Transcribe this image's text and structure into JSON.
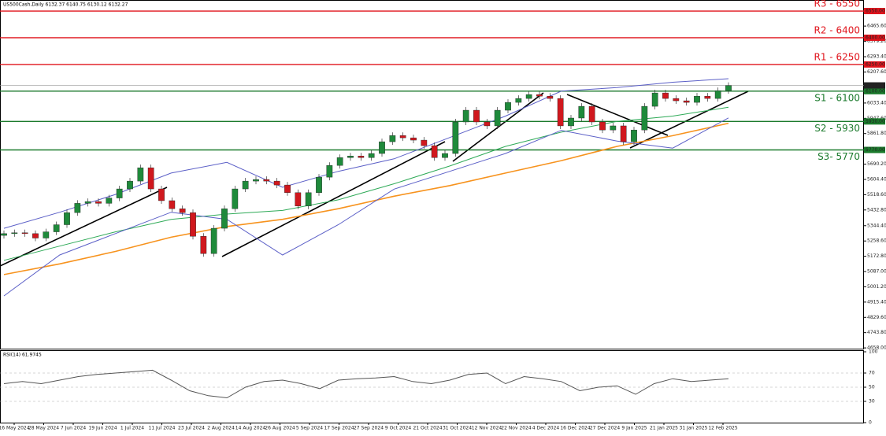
{
  "chart_data": {
    "type": "candlestick",
    "title": "US500Cash,Daily  6132.37 6140.75 6130.12 6132.27",
    "first_open": 5290,
    "closes": [
      5300,
      5305,
      5300,
      5275,
      5310,
      5350,
      5418,
      5470,
      5480,
      5470,
      5500,
      5551,
      5595,
      5670,
      5551,
      5485,
      5440,
      5418,
      5285,
      5188,
      5330,
      5440,
      5551,
      5595,
      5604,
      5595,
      5573,
      5530,
      5455,
      5530,
      5617,
      5683,
      5727,
      5736,
      5727,
      5750,
      5816,
      5851,
      5838,
      5825,
      5794,
      5727,
      5750,
      5927,
      5993,
      5927,
      5905,
      5993,
      6037,
      6059,
      6081,
      6072,
      6059,
      5905,
      5949,
      6015,
      5927,
      5882,
      5905,
      5816,
      5882,
      6015,
      6090,
      6059,
      6046,
      6037,
      6072,
      6059,
      6103,
      6132
    ],
    "up_color": "#1f8a3b",
    "down_color": "#d0181e",
    "overlays": [
      {
        "name": "MA100",
        "color": "#f7931e",
        "values": [
          5070,
          5130,
          5200,
          5280,
          5340,
          5380,
          5440,
          5510,
          5570,
          5640,
          5710,
          5790,
          5850,
          5920
        ]
      },
      {
        "name": "MA50",
        "color": "#2eaa57",
        "values": [
          5150,
          5230,
          5310,
          5380,
          5410,
          5430,
          5490,
          5580,
          5680,
          5790,
          5870,
          5930,
          5960,
          6010
        ]
      },
      {
        "name": "BB upper",
        "color": "#5b5fc7",
        "values": [
          5330,
          5420,
          5520,
          5640,
          5700,
          5560,
          5650,
          5720,
          5840,
          5960,
          6100,
          6120,
          6150,
          6170
        ]
      },
      {
        "name": "BB lower",
        "color": "#5b5fc7",
        "values": [
          4950,
          5180,
          5300,
          5420,
          5380,
          5180,
          5350,
          5550,
          5650,
          5750,
          5880,
          5820,
          5780,
          5950
        ]
      }
    ],
    "levels": [
      {
        "name": "R3 - 6550",
        "value": 6550,
        "label": "6550.00",
        "color": "#e0141c"
      },
      {
        "name": "R2 - 6400",
        "value": 6400,
        "label": "6400.00",
        "color": "#e0141c"
      },
      {
        "name": "R1 - 6250",
        "value": 6250,
        "label": "6250.00",
        "color": "#e0141c"
      },
      {
        "name": "S1 - 6100",
        "value": 6100,
        "label": "6100.00",
        "color": "#1b7a2c"
      },
      {
        "name": "S2 - 5930",
        "value": 5930,
        "label": "5930.00",
        "color": "#1b7a2c"
      },
      {
        "name": "S3- 5770",
        "value": 5770,
        "label": "5770.00",
        "color": "#1b7a2c"
      }
    ],
    "last_price": {
      "value": 6132.27,
      "label": "6132.27"
    },
    "ylim": [
      4654,
      6612
    ],
    "yticks": [
      {
        "value": 4658,
        "label": "4658.00"
      },
      {
        "value": 4743.8,
        "label": "4743.80"
      },
      {
        "value": 4829.6,
        "label": "4829.60"
      },
      {
        "value": 4915.4,
        "label": "4915.40"
      },
      {
        "value": 5001.2,
        "label": "5001.20"
      },
      {
        "value": 5087,
        "label": "5087.00"
      },
      {
        "value": 5172.8,
        "label": "5172.80"
      },
      {
        "value": 5258.6,
        "label": "5258.60"
      },
      {
        "value": 5344.4,
        "label": "5344.40"
      },
      {
        "value": 5432.8,
        "label": "5432.80"
      },
      {
        "value": 5518.6,
        "label": "5518.60"
      },
      {
        "value": 5604.4,
        "label": "5604.40"
      },
      {
        "value": 5690.2,
        "label": "5690.20"
      },
      {
        "value": 5861.8,
        "label": "5861.80"
      },
      {
        "value": 5947.6,
        "label": "5947.60"
      },
      {
        "value": 6033.4,
        "label": "6033.40"
      },
      {
        "value": 6207.6,
        "label": "6207.60"
      },
      {
        "value": 6293.4,
        "label": "6293.40"
      },
      {
        "value": 6379.2,
        "label": "6379.20"
      },
      {
        "value": 6465.6,
        "label": "6465.60"
      }
    ],
    "x_labels": [
      "16 May 2024",
      "28 May 2024",
      "7 Jun 2024",
      "19 Jun 2024",
      "1 Jul 2024",
      "11 Jul 2024",
      "23 Jul 2024",
      "2 Aug 2024",
      "14 Aug 2024",
      "26 Aug 2024",
      "5 Sep 2024",
      "17 Sep 2024",
      "27 Sep 2024",
      "9 Oct 2024",
      "21 Oct 2024",
      "31 Oct 2024",
      "12 Nov 2024",
      "22 Nov 2024",
      "4 Dec 2024",
      "16 Dec 2024",
      "27 Dec 2024",
      "9 Jan 2025",
      "21 Jan 2025",
      "31 Jan 2025",
      "12 Feb 2025"
    ],
    "rsi": {
      "title": "RSI(14) 61.9745",
      "color": "#555",
      "ylim": [
        0,
        100
      ],
      "yticks": [
        100,
        70,
        50,
        30,
        0
      ],
      "levels": [
        70,
        50,
        30
      ],
      "values": [
        55,
        58,
        55,
        60,
        65,
        68,
        70,
        72,
        74,
        60,
        45,
        38,
        35,
        50,
        58,
        60,
        55,
        48,
        60,
        62,
        63,
        65,
        58,
        55,
        60,
        68,
        70,
        55,
        65,
        62,
        58,
        45,
        50,
        52,
        40,
        55,
        62,
        58,
        60,
        62
      ]
    }
  }
}
